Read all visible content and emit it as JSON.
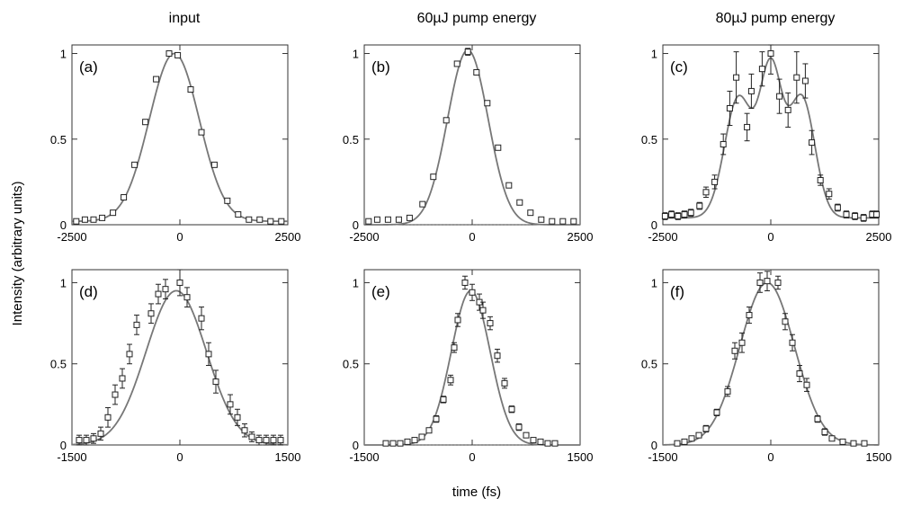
{
  "figure": {
    "column_titles": [
      "input",
      "60µJ pump energy",
      "80µJ pump energy"
    ],
    "ylabel": "Intensity (arbitrary units)",
    "xlabel": "time (fs)"
  },
  "chart_data": [
    {
      "type": "scatter",
      "panel": "(a)",
      "xlim": [
        -2500,
        2500
      ],
      "ylim": [
        0,
        1.05
      ],
      "xticks": [
        -2500,
        0,
        2500
      ],
      "xtick_labels": [
        "-2500",
        "0",
        "2500"
      ],
      "yticks": [
        0,
        0.5,
        1
      ],
      "ytick_labels": [
        "0",
        "0.5",
        "1"
      ],
      "points": [
        {
          "x": -2400,
          "y": 0.02,
          "e": 0.01
        },
        {
          "x": -2200,
          "y": 0.03,
          "e": 0.01
        },
        {
          "x": -2000,
          "y": 0.03,
          "e": 0.01
        },
        {
          "x": -1800,
          "y": 0.04,
          "e": 0.01
        },
        {
          "x": -1550,
          "y": 0.07,
          "e": 0.01
        },
        {
          "x": -1300,
          "y": 0.16,
          "e": 0.01
        },
        {
          "x": -1050,
          "y": 0.35,
          "e": 0.01
        },
        {
          "x": -800,
          "y": 0.6,
          "e": 0.01
        },
        {
          "x": -550,
          "y": 0.85,
          "e": 0.01
        },
        {
          "x": -250,
          "y": 1.0,
          "e": 0.01
        },
        {
          "x": -50,
          "y": 0.99,
          "e": 0.01
        },
        {
          "x": 250,
          "y": 0.79,
          "e": 0.01
        },
        {
          "x": 500,
          "y": 0.54,
          "e": 0.01
        },
        {
          "x": 800,
          "y": 0.35,
          "e": 0.01
        },
        {
          "x": 1100,
          "y": 0.14,
          "e": 0.01
        },
        {
          "x": 1350,
          "y": 0.06,
          "e": 0.01
        },
        {
          "x": 1600,
          "y": 0.03,
          "e": 0.01
        },
        {
          "x": 1850,
          "y": 0.03,
          "e": 0.01
        },
        {
          "x": 2100,
          "y": 0.02,
          "e": 0.01
        },
        {
          "x": 2350,
          "y": 0.02,
          "e": 0.01
        }
      ],
      "fit": {
        "kind": "gaussian",
        "amplitude": 0.98,
        "center": -130,
        "sigma": 580,
        "offset": 0.02
      }
    },
    {
      "type": "scatter",
      "panel": "(b)",
      "xlim": [
        -2500,
        2500
      ],
      "ylim": [
        0,
        1.05
      ],
      "xticks": [
        -2500,
        0,
        2500
      ],
      "xtick_labels": [
        "-2500",
        "0",
        "2500"
      ],
      "yticks": [
        0,
        0.5,
        1
      ],
      "ytick_labels": [
        "0",
        "0.5",
        "1"
      ],
      "points": [
        {
          "x": -2400,
          "y": 0.02,
          "e": 0.01
        },
        {
          "x": -2200,
          "y": 0.03,
          "e": 0.01
        },
        {
          "x": -1950,
          "y": 0.03,
          "e": 0.01
        },
        {
          "x": -1700,
          "y": 0.03,
          "e": 0.01
        },
        {
          "x": -1450,
          "y": 0.04,
          "e": 0.01
        },
        {
          "x": -1150,
          "y": 0.12,
          "e": 0.01
        },
        {
          "x": -900,
          "y": 0.28,
          "e": 0.01
        },
        {
          "x": -600,
          "y": 0.61,
          "e": 0.01
        },
        {
          "x": -350,
          "y": 0.94,
          "e": 0.01
        },
        {
          "x": -100,
          "y": 1.01,
          "e": 0.02
        },
        {
          "x": 100,
          "y": 0.89,
          "e": 0.01
        },
        {
          "x": 350,
          "y": 0.71,
          "e": 0.01
        },
        {
          "x": 600,
          "y": 0.45,
          "e": 0.01
        },
        {
          "x": 850,
          "y": 0.23,
          "e": 0.01
        },
        {
          "x": 1100,
          "y": 0.13,
          "e": 0.01
        },
        {
          "x": 1350,
          "y": 0.07,
          "e": 0.01
        },
        {
          "x": 1600,
          "y": 0.03,
          "e": 0.01
        },
        {
          "x": 1850,
          "y": 0.02,
          "e": 0.01
        },
        {
          "x": 2100,
          "y": 0.02,
          "e": 0.01
        },
        {
          "x": 2350,
          "y": 0.02,
          "e": 0.01
        }
      ],
      "fit": {
        "kind": "gaussian",
        "amplitude": 1.02,
        "center": -100,
        "sigma": 470,
        "offset": 0.0
      },
      "dashed_baseline": true
    },
    {
      "type": "scatter",
      "panel": "(c)",
      "xlim": [
        -2500,
        2500
      ],
      "ylim": [
        0,
        1.05
      ],
      "xticks": [
        -2500,
        0,
        2500
      ],
      "xtick_labels": [
        "-2500",
        "0",
        "2500"
      ],
      "yticks": [
        0,
        0.5,
        1
      ],
      "ytick_labels": [
        "0",
        "0.5",
        "1"
      ],
      "points": [
        {
          "x": -2450,
          "y": 0.05,
          "e": 0.02
        },
        {
          "x": -2300,
          "y": 0.06,
          "e": 0.02
        },
        {
          "x": -2150,
          "y": 0.05,
          "e": 0.02
        },
        {
          "x": -2000,
          "y": 0.06,
          "e": 0.02
        },
        {
          "x": -1850,
          "y": 0.07,
          "e": 0.02
        },
        {
          "x": -1650,
          "y": 0.11,
          "e": 0.02
        },
        {
          "x": -1500,
          "y": 0.19,
          "e": 0.03
        },
        {
          "x": -1300,
          "y": 0.25,
          "e": 0.04
        },
        {
          "x": -1100,
          "y": 0.47,
          "e": 0.06
        },
        {
          "x": -950,
          "y": 0.68,
          "e": 0.1
        },
        {
          "x": -800,
          "y": 0.86,
          "e": 0.15
        },
        {
          "x": -550,
          "y": 0.57,
          "e": 0.08
        },
        {
          "x": -450,
          "y": 0.78,
          "e": 0.1
        },
        {
          "x": -200,
          "y": 0.91,
          "e": 0.1
        },
        {
          "x": 0,
          "y": 1.0,
          "e": 0.12
        },
        {
          "x": 200,
          "y": 0.75,
          "e": 0.1
        },
        {
          "x": 400,
          "y": 0.67,
          "e": 0.1
        },
        {
          "x": 600,
          "y": 0.86,
          "e": 0.15
        },
        {
          "x": 800,
          "y": 0.84,
          "e": 0.1
        },
        {
          "x": 950,
          "y": 0.48,
          "e": 0.07
        },
        {
          "x": 1150,
          "y": 0.26,
          "e": 0.03
        },
        {
          "x": 1350,
          "y": 0.18,
          "e": 0.03
        },
        {
          "x": 1550,
          "y": 0.1,
          "e": 0.02
        },
        {
          "x": 1750,
          "y": 0.06,
          "e": 0.02
        },
        {
          "x": 1950,
          "y": 0.05,
          "e": 0.02
        },
        {
          "x": 2150,
          "y": 0.04,
          "e": 0.02
        },
        {
          "x": 2350,
          "y": 0.06,
          "e": 0.02
        },
        {
          "x": 2450,
          "y": 0.06,
          "e": 0.02
        }
      ],
      "fit": {
        "kind": "multi-gaussian",
        "offset": 0.04,
        "components": [
          {
            "amplitude": 0.7,
            "center": -750,
            "sigma": 320
          },
          {
            "amplitude": 0.85,
            "center": 0,
            "sigma": 260
          },
          {
            "amplitude": 0.7,
            "center": 720,
            "sigma": 300
          }
        ]
      }
    },
    {
      "type": "scatter",
      "panel": "(d)",
      "xlim": [
        -1500,
        1500
      ],
      "ylim": [
        0,
        1.08
      ],
      "xticks": [
        -1500,
        0,
        1500
      ],
      "xtick_labels": [
        "-1500",
        "0",
        "1500"
      ],
      "yticks": [
        0,
        0.5,
        1
      ],
      "ytick_labels": [
        "0",
        "0.5",
        "1"
      ],
      "points": [
        {
          "x": -1400,
          "y": 0.03,
          "e": 0.03
        },
        {
          "x": -1300,
          "y": 0.03,
          "e": 0.03
        },
        {
          "x": -1200,
          "y": 0.04,
          "e": 0.03
        },
        {
          "x": -1100,
          "y": 0.07,
          "e": 0.04
        },
        {
          "x": -1000,
          "y": 0.17,
          "e": 0.06
        },
        {
          "x": -900,
          "y": 0.31,
          "e": 0.06
        },
        {
          "x": -800,
          "y": 0.41,
          "e": 0.06
        },
        {
          "x": -700,
          "y": 0.56,
          "e": 0.06
        },
        {
          "x": -600,
          "y": 0.74,
          "e": 0.06
        },
        {
          "x": -400,
          "y": 0.81,
          "e": 0.06
        },
        {
          "x": -300,
          "y": 0.93,
          "e": 0.06
        },
        {
          "x": -200,
          "y": 0.96,
          "e": 0.06
        },
        {
          "x": 0,
          "y": 1.0,
          "e": 0.08
        },
        {
          "x": 100,
          "y": 0.91,
          "e": 0.06
        },
        {
          "x": 300,
          "y": 0.78,
          "e": 0.07
        },
        {
          "x": 400,
          "y": 0.56,
          "e": 0.07
        },
        {
          "x": 500,
          "y": 0.39,
          "e": 0.07
        },
        {
          "x": 700,
          "y": 0.25,
          "e": 0.06
        },
        {
          "x": 800,
          "y": 0.17,
          "e": 0.05
        },
        {
          "x": 900,
          "y": 0.09,
          "e": 0.04
        },
        {
          "x": 1000,
          "y": 0.05,
          "e": 0.03
        },
        {
          "x": 1100,
          "y": 0.03,
          "e": 0.03
        },
        {
          "x": 1200,
          "y": 0.03,
          "e": 0.03
        },
        {
          "x": 1300,
          "y": 0.03,
          "e": 0.03
        },
        {
          "x": 1400,
          "y": 0.03,
          "e": 0.03
        }
      ],
      "fit": {
        "kind": "gaussian",
        "amplitude": 0.95,
        "center": -50,
        "sigma": 420,
        "offset": 0.0
      }
    },
    {
      "type": "scatter",
      "panel": "(e)",
      "xlim": [
        -1500,
        1500
      ],
      "ylim": [
        0,
        1.08
      ],
      "xticks": [
        -1500,
        0,
        1500
      ],
      "xtick_labels": [
        "-1500",
        "0",
        "1500"
      ],
      "yticks": [
        0,
        0.5,
        1
      ],
      "ytick_labels": [
        "0",
        "0.5",
        "1"
      ],
      "points": [
        {
          "x": -1200,
          "y": 0.01,
          "e": 0.01
        },
        {
          "x": -1100,
          "y": 0.01,
          "e": 0.01
        },
        {
          "x": -1000,
          "y": 0.01,
          "e": 0.01
        },
        {
          "x": -900,
          "y": 0.02,
          "e": 0.01
        },
        {
          "x": -800,
          "y": 0.03,
          "e": 0.01
        },
        {
          "x": -700,
          "y": 0.05,
          "e": 0.01
        },
        {
          "x": -600,
          "y": 0.09,
          "e": 0.01
        },
        {
          "x": -500,
          "y": 0.16,
          "e": 0.02
        },
        {
          "x": -400,
          "y": 0.28,
          "e": 0.02
        },
        {
          "x": -300,
          "y": 0.4,
          "e": 0.03
        },
        {
          "x": -250,
          "y": 0.6,
          "e": 0.03
        },
        {
          "x": -200,
          "y": 0.77,
          "e": 0.04
        },
        {
          "x": -100,
          "y": 1.0,
          "e": 0.04
        },
        {
          "x": 0,
          "y": 0.94,
          "e": 0.05
        },
        {
          "x": 100,
          "y": 0.88,
          "e": 0.05
        },
        {
          "x": 150,
          "y": 0.83,
          "e": 0.05
        },
        {
          "x": 250,
          "y": 0.75,
          "e": 0.04
        },
        {
          "x": 350,
          "y": 0.55,
          "e": 0.04
        },
        {
          "x": 450,
          "y": 0.38,
          "e": 0.03
        },
        {
          "x": 550,
          "y": 0.22,
          "e": 0.02
        },
        {
          "x": 650,
          "y": 0.11,
          "e": 0.02
        },
        {
          "x": 750,
          "y": 0.06,
          "e": 0.01
        },
        {
          "x": 850,
          "y": 0.03,
          "e": 0.01
        },
        {
          "x": 950,
          "y": 0.02,
          "e": 0.01
        },
        {
          "x": 1050,
          "y": 0.01,
          "e": 0.01
        },
        {
          "x": 1150,
          "y": 0.01,
          "e": 0.01
        }
      ],
      "fit": {
        "kind": "gaussian",
        "amplitude": 0.95,
        "center": -20,
        "sigma": 270,
        "offset": 0.0
      },
      "dashed_baseline": true
    },
    {
      "type": "scatter",
      "panel": "(f)",
      "xlim": [
        -1500,
        1500
      ],
      "ylim": [
        0,
        1.08
      ],
      "xticks": [
        -1500,
        0,
        1500
      ],
      "xtick_labels": [
        "-1500",
        "0",
        "1500"
      ],
      "yticks": [
        0,
        0.5,
        1
      ],
      "ytick_labels": [
        "0",
        "0.5",
        "1"
      ],
      "points": [
        {
          "x": -1300,
          "y": 0.01,
          "e": 0.01
        },
        {
          "x": -1200,
          "y": 0.02,
          "e": 0.01
        },
        {
          "x": -1100,
          "y": 0.04,
          "e": 0.01
        },
        {
          "x": -1000,
          "y": 0.06,
          "e": 0.01
        },
        {
          "x": -900,
          "y": 0.1,
          "e": 0.02
        },
        {
          "x": -750,
          "y": 0.2,
          "e": 0.02
        },
        {
          "x": -600,
          "y": 0.33,
          "e": 0.03
        },
        {
          "x": -500,
          "y": 0.58,
          "e": 0.05
        },
        {
          "x": -400,
          "y": 0.63,
          "e": 0.06
        },
        {
          "x": -300,
          "y": 0.8,
          "e": 0.05
        },
        {
          "x": -150,
          "y": 1.0,
          "e": 0.06
        },
        {
          "x": -50,
          "y": 1.01,
          "e": 0.06
        },
        {
          "x": 100,
          "y": 1.0,
          "e": 0.04
        },
        {
          "x": 200,
          "y": 0.76,
          "e": 0.05
        },
        {
          "x": 300,
          "y": 0.63,
          "e": 0.05
        },
        {
          "x": 400,
          "y": 0.44,
          "e": 0.05
        },
        {
          "x": 500,
          "y": 0.37,
          "e": 0.04
        },
        {
          "x": 650,
          "y": 0.16,
          "e": 0.02
        },
        {
          "x": 750,
          "y": 0.08,
          "e": 0.02
        },
        {
          "x": 850,
          "y": 0.04,
          "e": 0.01
        },
        {
          "x": 1000,
          "y": 0.02,
          "e": 0.01
        },
        {
          "x": 1150,
          "y": 0.01,
          "e": 0.01
        },
        {
          "x": 1300,
          "y": 0.01,
          "e": 0.01
        }
      ],
      "fit": {
        "kind": "gaussian",
        "amplitude": 1.0,
        "center": -50,
        "sigma": 380,
        "offset": 0.0
      }
    }
  ]
}
